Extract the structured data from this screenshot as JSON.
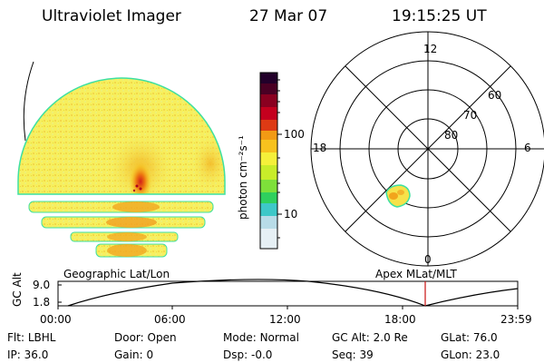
{
  "header": {
    "instrument": "Ultraviolet Imager",
    "date": "27 Mar 07",
    "time": "19:15:25 UT"
  },
  "colorbar": {
    "label": "photon cm⁻²s⁻¹",
    "ticks": [
      "100",
      "10"
    ],
    "colors": [
      "#e6f0f5",
      "#b8dce8",
      "#3ec8c8",
      "#2fd05e",
      "#7ee03a",
      "#c8ec2a",
      "#f5f03a",
      "#f7c21e",
      "#f29a14",
      "#ea6b10",
      "#de3a14",
      "#c4001e",
      "#8a0020",
      "#4a0024",
      "#22002a"
    ]
  },
  "image_panel": {
    "label": "Geographic Lat/Lon"
  },
  "polar_plot": {
    "label": "Apex MLat/MLT",
    "mlt_labels": [
      "12",
      "18",
      "6",
      "0"
    ],
    "lat_labels": [
      "60",
      "70",
      "80"
    ]
  },
  "timeline": {
    "ylabel": "GC Alt",
    "ytick_top": "9.0",
    "ytick_bottom": "1.8",
    "xticks": [
      "00:00",
      "06:00",
      "12:00",
      "18:00",
      "23:59"
    ],
    "current_time_fraction": 0.79
  },
  "status": {
    "row1": [
      {
        "key": "Flt:",
        "value": "LBHL"
      },
      {
        "key": "Door:",
        "value": "Open"
      },
      {
        "key": "Mode:",
        "value": "Normal"
      },
      {
        "key": "GC Alt:",
        "value": "2.0 Re"
      },
      {
        "key": "GLat:",
        "value": "76.0"
      }
    ],
    "row2": [
      {
        "key": "IP:",
        "value": "36.0"
      },
      {
        "key": "Gain:",
        "value": "0"
      },
      {
        "key": "Dsp:",
        "value": "-0.0"
      },
      {
        "key": "Seq:",
        "value": "39"
      },
      {
        "key": "GLon:",
        "value": "23.0"
      }
    ]
  }
}
